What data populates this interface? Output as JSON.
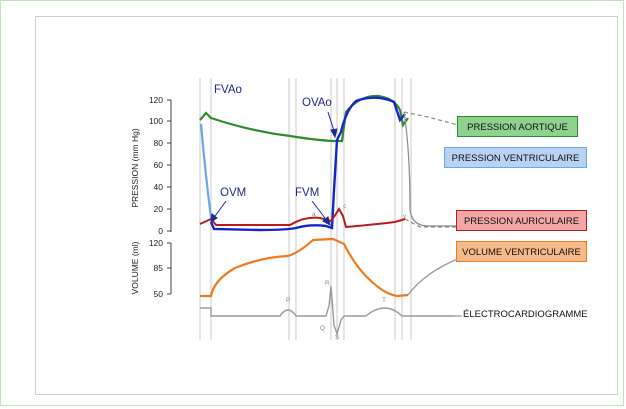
{
  "diagram": {
    "pressure_axis": {
      "title": "PRESSION (mm Hg)",
      "ticks": [
        "120",
        "100",
        "80",
        "60",
        "40",
        "20",
        "0"
      ]
    },
    "volume_axis": {
      "title": "VOLUME (ml)",
      "ticks": [
        "120",
        "85",
        "50"
      ]
    },
    "valve_labels": {
      "fvao": "FVAo",
      "ovao": "OVAo",
      "ovm": "OVM",
      "fvm": "FVM"
    },
    "ecg_letters": {
      "p": "P",
      "q": "Q",
      "r": "R",
      "s": "S",
      "t": "T"
    },
    "curve_letters": {
      "a": "a",
      "c": "c",
      "v": "v"
    },
    "legend": {
      "aortic": "PRESSION AORTIQUE",
      "ventricular": "PRESSION VENTRICULAIRE",
      "atrial": "PRESSION AURICULAIRE",
      "volume": "VOLUME VENTRICULAIRE",
      "ecg": "ÉLECTROCARDIOGRAMME"
    },
    "colors": {
      "aortic": "#2e8b2e",
      "ventricular": "#1428c8",
      "ventricular_light": "#6aa8e8",
      "atrial": "#b81c1c",
      "volume": "#f07a1e",
      "ecg": "#9a9a9a",
      "aortic_box": "#8fd18f",
      "ventricular_box": "#b9d2f2",
      "atrial_box": "#f2a6a6",
      "volume_box": "#f5b98a"
    }
  }
}
